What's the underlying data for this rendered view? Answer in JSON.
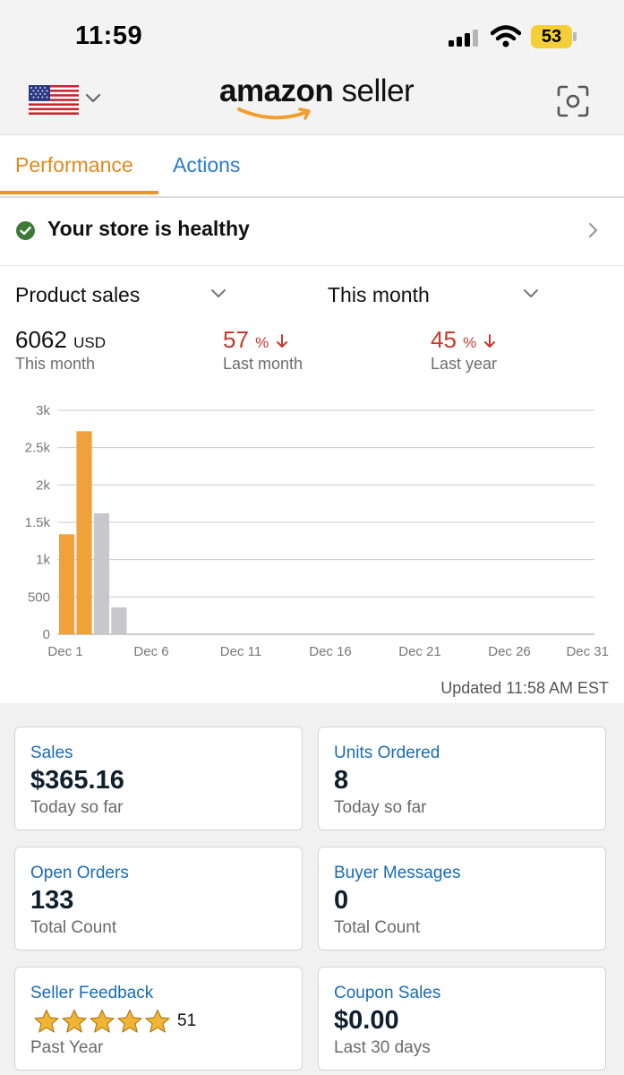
{
  "status_bar": {
    "time": "11:59",
    "battery": "53"
  },
  "header": {
    "brand_bold": "amazon",
    "brand_light": "seller"
  },
  "tabs": [
    {
      "label": "Performance",
      "active": true
    },
    {
      "label": "Actions",
      "active": false
    }
  ],
  "health": {
    "text": "Your store is healthy"
  },
  "selectors": {
    "metric": "Product sales",
    "period": "This month"
  },
  "kpis": {
    "current_value": "6062",
    "current_unit": "USD",
    "current_label": "This month",
    "last_month_value": "57",
    "last_month_unit": "%",
    "last_month_label": "Last month",
    "last_year_value": "45",
    "last_year_unit": "%",
    "last_year_label": "Last year"
  },
  "chart_data": {
    "type": "bar",
    "x_tick_labels": [
      "Dec 1",
      "Dec 6",
      "Dec 11",
      "Dec 16",
      "Dec 21",
      "Dec 26",
      "Dec 31"
    ],
    "y_tick_labels": [
      "0",
      "500",
      "1k",
      "1.5k",
      "2k",
      "2.5k",
      "3k"
    ],
    "ylim": [
      0,
      3000
    ],
    "xlim_days": [
      1,
      31
    ],
    "grid": true,
    "series": [
      {
        "color": "#f0a13a",
        "points": [
          {
            "x": "Dec 1",
            "y": 1340
          },
          {
            "x": "Dec 2",
            "y": 2720
          }
        ]
      },
      {
        "color": "#c8c8cc",
        "points": [
          {
            "x": "Dec 3",
            "y": 1620
          },
          {
            "x": "Dec 4",
            "y": 360
          }
        ]
      }
    ]
  },
  "updated_text": "Updated 11:58 AM EST",
  "cards": [
    {
      "title": "Sales",
      "value": "$365.16",
      "subtitle": "Today so far"
    },
    {
      "title": "Units Ordered",
      "value": "8",
      "subtitle": "Today so far"
    },
    {
      "title": "Open Orders",
      "value": "133",
      "subtitle": "Total Count"
    },
    {
      "title": "Buyer Messages",
      "value": "0",
      "subtitle": "Total Count"
    },
    {
      "title": "Seller Feedback",
      "rating": 5,
      "rating_count": "51",
      "subtitle": "Past Year"
    },
    {
      "title": "Coupon Sales",
      "value": "$0.00",
      "subtitle": "Last 30 days"
    }
  ],
  "colors": {
    "accent_orange": "#e7962a",
    "link_blue": "#1a6bb2",
    "negative_red": "#c8382b",
    "healthy_green": "#3d7a3a"
  }
}
